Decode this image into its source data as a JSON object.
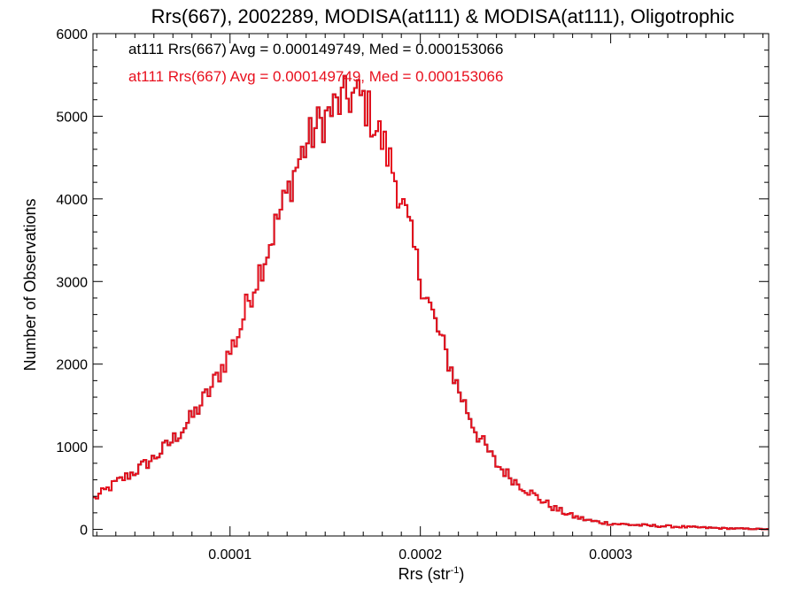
{
  "chart_data": {
    "type": "histogram",
    "title": "Rrs(667), 2002289, MODISA(at111) & MODISA(at111), Oligotrophic",
    "xlabel": "Rrs (str",
    "xlabel_sup": "-1",
    "xlabel_suffix": ")",
    "ylabel": "Number of Observations",
    "xlim": [
      2.8e-05,
      0.000383
    ],
    "ylim": [
      -80,
      6000
    ],
    "x_ticks": [
      0.0001,
      0.0002,
      0.0003
    ],
    "x_tick_labels": [
      "0.0001",
      "0.0002",
      "0.0003"
    ],
    "y_ticks": [
      0,
      1000,
      2000,
      3000,
      4000,
      5000,
      6000
    ],
    "y_tick_labels": [
      "0",
      "1000",
      "2000",
      "3000",
      "4000",
      "5000",
      "6000"
    ],
    "grid": false,
    "legend_position": "top-left",
    "bin_width": 1.4e-06,
    "profile_x": [
      2.8e-05,
      4e-05,
      5e-05,
      6e-05,
      7e-05,
      8e-05,
      9e-05,
      0.0001,
      0.000105,
      0.00011,
      0.000115,
      0.00012,
      0.000125,
      0.00013,
      0.000135,
      0.00014,
      0.000145,
      0.00015,
      0.000155,
      0.00016,
      0.000165,
      0.00017,
      0.000175,
      0.00018,
      0.000185,
      0.00019,
      0.000195,
      0.0002,
      0.00021,
      0.00022,
      0.00023,
      0.00024,
      0.00025,
      0.00026,
      0.00027,
      0.00028,
      0.00029,
      0.0003,
      0.00032,
      0.00034,
      0.00036,
      0.00038,
      0.000383
    ],
    "profile_y": [
      360,
      560,
      700,
      860,
      1080,
      1350,
      1700,
      2150,
      2400,
      2800,
      3100,
      3400,
      3750,
      4050,
      4400,
      4650,
      4850,
      4980,
      5100,
      5200,
      5250,
      5200,
      4950,
      4700,
      4400,
      4000,
      3550,
      3050,
      2350,
      1700,
      1150,
      790,
      580,
      410,
      260,
      160,
      100,
      70,
      45,
      28,
      12,
      4,
      2
    ],
    "series": [
      {
        "name": "at111 Rrs(667) Avg = 0.000149749, Med = 0.000153066",
        "color": "#000000",
        "avg": 0.000149749,
        "median": 0.000153066
      },
      {
        "name": "at111 Rrs(667) Avg = 0.000149749, Med = 0.000153066",
        "color": "#e8101e",
        "avg": 0.000149749,
        "median": 0.000153066
      }
    ]
  }
}
